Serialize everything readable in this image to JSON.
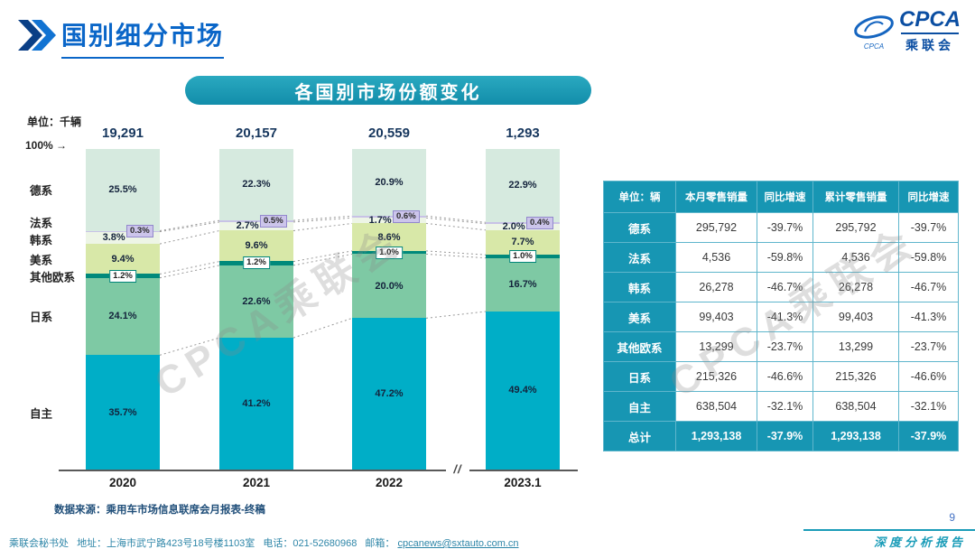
{
  "page": {
    "title": "国别细分市场",
    "watermark": "CPCA乘联会",
    "page_number": "9",
    "report_label": "深度分析报告"
  },
  "logo": {
    "brand": "CPCA",
    "brand_small": "CPCA",
    "name": "乘联会"
  },
  "banner": {
    "title": "各国别市场份额变化"
  },
  "chart": {
    "unit_label": "单位：千辆",
    "axis_top": "100% →",
    "break_mark": "//",
    "source": "数据来源：乘用车市场信息联席会月报表-终稿"
  },
  "chart_data": {
    "type": "bar",
    "stacked": true,
    "title": "各国别市场份额变化",
    "unit": "千辆",
    "value_unit": "%",
    "ylim": [
      0,
      100
    ],
    "categories": [
      "2020",
      "2021",
      "2022",
      "2023.1"
    ],
    "totals": [
      "19,291",
      "20,157",
      "20,559",
      "1,293"
    ],
    "series": [
      {
        "name": "自主",
        "color": "#00aec7",
        "values": [
          35.7,
          41.2,
          47.2,
          49.4
        ]
      },
      {
        "name": "日系",
        "color": "#7ec9a4",
        "values": [
          24.1,
          22.6,
          20.0,
          16.7
        ]
      },
      {
        "name": "其他欧系",
        "color": "#00897b",
        "values": [
          1.2,
          1.2,
          1.0,
          1.0
        ]
      },
      {
        "name": "美系",
        "color": "#d8e8a8",
        "values": [
          9.4,
          9.6,
          8.6,
          7.7
        ]
      },
      {
        "name": "韩系",
        "color": "#edf5e6",
        "values": [
          3.8,
          2.7,
          1.7,
          2.0
        ]
      },
      {
        "name": "法系",
        "color": "#c8c2e6",
        "values": [
          0.3,
          0.5,
          0.6,
          0.4
        ]
      },
      {
        "name": "德系",
        "color": "#d6eadf",
        "values": [
          25.5,
          22.3,
          20.9,
          22.9
        ]
      }
    ]
  },
  "table": {
    "headers": [
      "单位：辆",
      "本月零售销量",
      "同比增速",
      "累计零售销量",
      "同比增速"
    ],
    "rows": [
      {
        "label": "德系",
        "cells": [
          "295,792",
          "-39.7%",
          "295,792",
          "-39.7%"
        ]
      },
      {
        "label": "法系",
        "cells": [
          "4,536",
          "-59.8%",
          "4,536",
          "-59.8%"
        ]
      },
      {
        "label": "韩系",
        "cells": [
          "26,278",
          "-46.7%",
          "26,278",
          "-46.7%"
        ]
      },
      {
        "label": "美系",
        "cells": [
          "99,403",
          "-41.3%",
          "99,403",
          "-41.3%"
        ]
      },
      {
        "label": "其他欧系",
        "cells": [
          "13,299",
          "-23.7%",
          "13,299",
          "-23.7%"
        ]
      },
      {
        "label": "日系",
        "cells": [
          "215,326",
          "-46.6%",
          "215,326",
          "-46.6%"
        ]
      },
      {
        "label": "自主",
        "cells": [
          "638,504",
          "-32.1%",
          "638,504",
          "-32.1%"
        ]
      },
      {
        "label": "总计",
        "cells": [
          "1,293,138",
          "-37.9%",
          "1,293,138",
          "-37.9%"
        ],
        "total": true
      }
    ]
  },
  "footer": {
    "secretariat": "乘联会秘书处",
    "address": "地址：上海市武宁路423号18号楼1103室",
    "phone": "电话：021-52680968",
    "email_label": "邮箱：",
    "email": "cpcanews@sxtauto.com.cn"
  },
  "colors": {
    "accent_teal": "#1796b3",
    "title_blue": "#0a66c8",
    "navy": "#17375e"
  }
}
